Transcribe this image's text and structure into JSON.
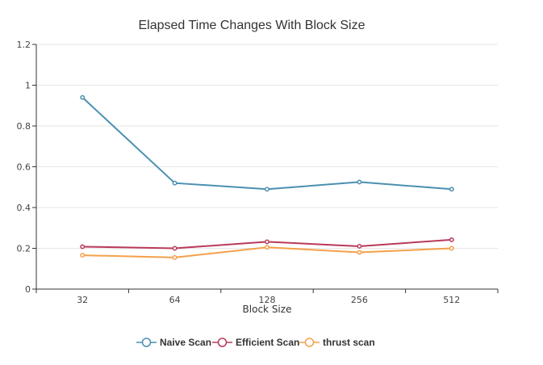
{
  "chart_data": {
    "type": "line",
    "title": "Elapsed Time Changes With Block Size",
    "xlabel": "Block Size",
    "ylabel": "",
    "categories": [
      "32",
      "64",
      "128",
      "256",
      "512"
    ],
    "ylim": [
      0,
      1.2
    ],
    "yticks": [
      "0",
      "0.2",
      "0.4",
      "0.6",
      "0.8",
      "1",
      "1.2"
    ],
    "grid": true,
    "legend_position": "bottom-center",
    "series": [
      {
        "name": "Naive Scan",
        "color": "#4a90b0",
        "values": [
          0.94,
          0.52,
          0.49,
          0.525,
          0.49
        ]
      },
      {
        "name": "Efficient Scan",
        "color": "#b93a5a",
        "values": [
          0.208,
          0.2,
          0.232,
          0.21,
          0.242
        ]
      },
      {
        "name": "thrust scan",
        "color": "#f5a04a",
        "values": [
          0.166,
          0.155,
          0.205,
          0.18,
          0.2
        ]
      }
    ]
  }
}
